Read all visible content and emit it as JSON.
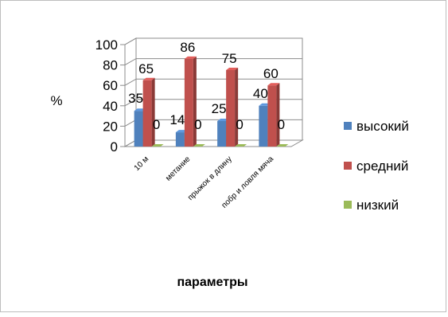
{
  "chart_data": {
    "type": "bar",
    "three_d": true,
    "categories": [
      "10 м",
      "метание",
      "прыжок в длину",
      "побр и ловля мяча"
    ],
    "series": [
      {
        "name": "высокий",
        "values": [
          35,
          14,
          25,
          40
        ],
        "color": "#4f81bd"
      },
      {
        "name": "средний",
        "values": [
          65,
          86,
          75,
          60
        ],
        "color": "#c0504d"
      },
      {
        "name": "низкий",
        "values": [
          0,
          0,
          0,
          0
        ],
        "color": "#9bbb59"
      }
    ],
    "title": "",
    "xlabel": "параметры",
    "ylabel": "%",
    "ylim": [
      0,
      100
    ],
    "yticks": [
      0,
      20,
      40,
      60,
      80,
      100
    ],
    "grid": true,
    "legend_position": "right",
    "data_labels": true
  }
}
